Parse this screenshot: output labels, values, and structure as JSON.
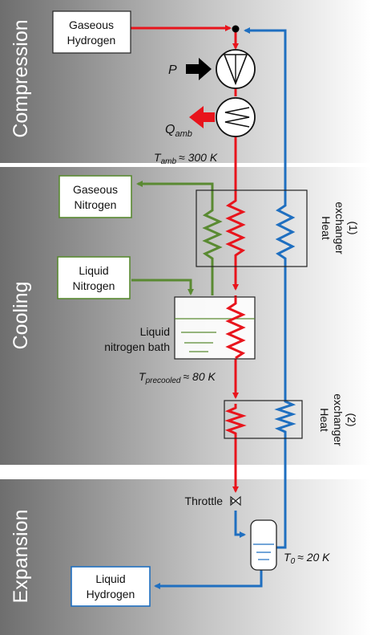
{
  "sections": {
    "compression": "Compression",
    "cooling": "Cooling",
    "expansion": "Expansion"
  },
  "boxes": {
    "gaseous_hydrogen": [
      "Gaseous",
      "Hydrogen"
    ],
    "gaseous_nitrogen": [
      "Gaseous",
      "Nitrogen"
    ],
    "liquid_nitrogen": [
      "Liquid",
      "Nitrogen"
    ],
    "liquid_hydrogen": [
      "Liquid",
      "Hydrogen"
    ]
  },
  "labels": {
    "compressor_power": "P",
    "heat_out_main": "Q",
    "heat_out_sub": "amb",
    "t_amb_main": "T",
    "t_amb_sub": "amb",
    "t_amb_value": "≈ 300 K",
    "liquid_nitrogen_bath": [
      "Liquid",
      "nitrogen bath"
    ],
    "t_precooled_main": "T",
    "t_precooled_sub": "precooled",
    "t_precooled_value": "≈ 80 K",
    "throttle": "Throttle",
    "t0_main": "T",
    "t0_sub": "0",
    "t0_value": "≈ 20 K",
    "heat_exchanger_1": [
      "Heat",
      "exchanger",
      "(1)"
    ],
    "heat_exchanger_2": [
      "Heat",
      "exchanger",
      "(2)"
    ]
  },
  "colors": {
    "hydrogen_warm": "#e8141c",
    "hydrogen_cold": "#1f6fc0",
    "nitrogen": "#5a8a32",
    "band_dark": "#707070",
    "band_light": "#ffffff"
  }
}
